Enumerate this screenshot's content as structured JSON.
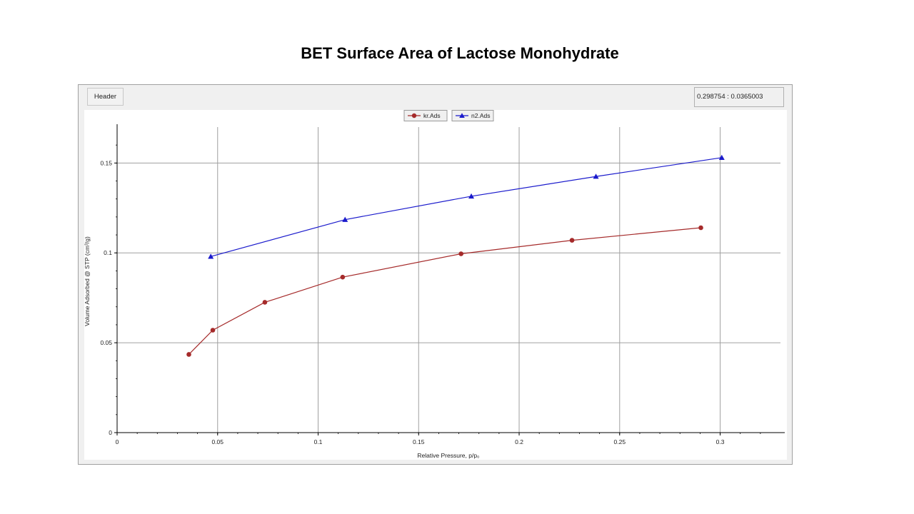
{
  "slide": {
    "title": "BET Surface Area of Lactose Monohydrate"
  },
  "toolbar": {
    "header_label": "Header",
    "coord_readout": "0.298754 : 0.0365003"
  },
  "colors": {
    "kr": "#a52a2a",
    "n2": "#1a1acc",
    "grid": "#a0a0a0",
    "axis": "#000000"
  },
  "chart_data": {
    "type": "line",
    "title": "",
    "xlabel": "Relative Pressure, p/p₀",
    "ylabel": "Volume Adsorbed @ STP (cm³/g)",
    "xlim": [
      0,
      0.33
    ],
    "ylim": [
      0,
      0.17
    ],
    "xticks": [
      0,
      0.05,
      0.1,
      0.15,
      0.2,
      0.25,
      0.3
    ],
    "xtick_labels": [
      "0",
      "0.05",
      "0.1",
      "0.15",
      "0.2",
      "0.25",
      "0.3"
    ],
    "yticks": [
      0,
      0.05,
      0.1,
      0.15
    ],
    "ytick_labels": [
      "0",
      "0.05",
      "0.1",
      "0.15"
    ],
    "grid": true,
    "legend_position": "top-center",
    "series": [
      {
        "name": "kr.Ads",
        "marker": "circle",
        "color": "#a52a2a",
        "x": [
          0.0357,
          0.0476,
          0.0735,
          0.1122,
          0.1711,
          0.2263,
          0.2904
        ],
        "y": [
          0.0435,
          0.057,
          0.0725,
          0.0865,
          0.0995,
          0.107,
          0.114
        ]
      },
      {
        "name": "n2.Ads",
        "marker": "triangle",
        "color": "#1a1acc",
        "x": [
          0.0466,
          0.1134,
          0.1762,
          0.2382,
          0.3008
        ],
        "y": [
          0.098,
          0.1185,
          0.1315,
          0.1425,
          0.153
        ]
      }
    ]
  }
}
